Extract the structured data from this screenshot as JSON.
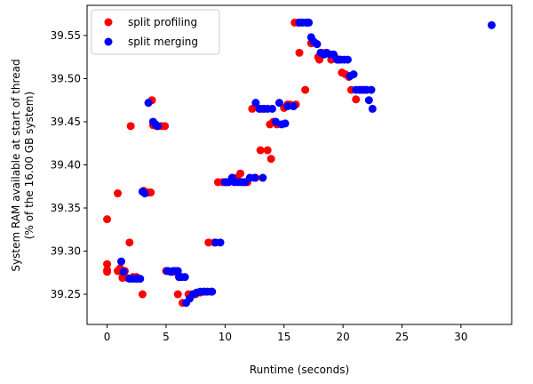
{
  "chart_data": {
    "type": "scatter",
    "title": "",
    "xlabel": "Runtime (seconds)",
    "ylabel_lines": [
      "System RAM available at start of thread",
      "(% of the 16.00 GB system)"
    ],
    "xlim": [
      -1.7,
      34.3
    ],
    "ylim": [
      39.215,
      39.585
    ],
    "xticks": [
      0,
      5,
      10,
      15,
      20,
      25,
      30
    ],
    "yticks": [
      39.25,
      39.3,
      39.35,
      39.4,
      39.45,
      39.5,
      39.55
    ],
    "ytick_labels": [
      "39.25",
      "39.30",
      "39.35",
      "39.40",
      "39.45",
      "39.50",
      "39.55"
    ],
    "grid": false,
    "legend_position": "upper-left",
    "series": [
      {
        "name": "split profiling",
        "color": "#ff0000",
        "points": [
          [
            0.0,
            39.337
          ],
          [
            0.0,
            39.285
          ],
          [
            0.0,
            39.278
          ],
          [
            0.0,
            39.276
          ],
          [
            0.9,
            39.367
          ],
          [
            0.9,
            39.277
          ],
          [
            1.1,
            39.28
          ],
          [
            1.2,
            39.276
          ],
          [
            1.3,
            39.269
          ],
          [
            1.5,
            39.277
          ],
          [
            1.7,
            39.269
          ],
          [
            1.9,
            39.31
          ],
          [
            2.0,
            39.445
          ],
          [
            2.2,
            39.27
          ],
          [
            2.5,
            39.27
          ],
          [
            3.0,
            39.25
          ],
          [
            3.1,
            39.37
          ],
          [
            3.3,
            39.368
          ],
          [
            3.5,
            39.368
          ],
          [
            3.7,
            39.368
          ],
          [
            3.8,
            39.475
          ],
          [
            3.9,
            39.446
          ],
          [
            4.2,
            39.445
          ],
          [
            4.6,
            39.445
          ],
          [
            4.9,
            39.445
          ],
          [
            5.0,
            39.277
          ],
          [
            5.2,
            39.277
          ],
          [
            5.5,
            39.276
          ],
          [
            5.8,
            39.276
          ],
          [
            6.0,
            39.25
          ],
          [
            6.1,
            39.27
          ],
          [
            6.4,
            39.24
          ],
          [
            6.9,
            39.25
          ],
          [
            7.2,
            39.25
          ],
          [
            7.5,
            39.25
          ],
          [
            7.9,
            39.252
          ],
          [
            8.3,
            39.253
          ],
          [
            8.6,
            39.31
          ],
          [
            8.8,
            39.253
          ],
          [
            9.1,
            39.31
          ],
          [
            9.4,
            39.38
          ],
          [
            9.8,
            39.38
          ],
          [
            10.2,
            39.38
          ],
          [
            10.6,
            39.385
          ],
          [
            11.0,
            39.385
          ],
          [
            11.3,
            39.39
          ],
          [
            11.6,
            39.38
          ],
          [
            11.9,
            39.38
          ],
          [
            12.3,
            39.465
          ],
          [
            12.6,
            39.385
          ],
          [
            13.0,
            39.417
          ],
          [
            13.1,
            39.465
          ],
          [
            13.6,
            39.417
          ],
          [
            13.8,
            39.447
          ],
          [
            13.9,
            39.407
          ],
          [
            14.1,
            39.45
          ],
          [
            14.4,
            39.447
          ],
          [
            15.0,
            39.466
          ],
          [
            15.3,
            39.47
          ],
          [
            15.5,
            39.47
          ],
          [
            15.9,
            39.565
          ],
          [
            16.0,
            39.47
          ],
          [
            16.2,
            39.565
          ],
          [
            16.3,
            39.53
          ],
          [
            16.5,
            39.565
          ],
          [
            16.8,
            39.487
          ],
          [
            17.0,
            39.565
          ],
          [
            17.3,
            39.541
          ],
          [
            17.7,
            39.541
          ],
          [
            17.9,
            39.525
          ],
          [
            18.0,
            39.522
          ],
          [
            18.2,
            39.53
          ],
          [
            18.6,
            39.53
          ],
          [
            19.0,
            39.522
          ],
          [
            19.3,
            39.525
          ],
          [
            19.7,
            39.522
          ],
          [
            19.9,
            39.507
          ],
          [
            20.2,
            39.505
          ],
          [
            20.5,
            39.502
          ],
          [
            20.7,
            39.487
          ],
          [
            21.1,
            39.476
          ],
          [
            21.5,
            39.487
          ],
          [
            21.9,
            39.487
          ]
        ]
      },
      {
        "name": "split merging",
        "color": "#0000ff",
        "points": [
          [
            1.2,
            39.288
          ],
          [
            1.4,
            39.276
          ],
          [
            1.9,
            39.268
          ],
          [
            2.2,
            39.268
          ],
          [
            2.5,
            39.268
          ],
          [
            2.8,
            39.268
          ],
          [
            3.0,
            39.369
          ],
          [
            3.2,
            39.367
          ],
          [
            3.5,
            39.472
          ],
          [
            3.9,
            39.45
          ],
          [
            4.1,
            39.447
          ],
          [
            4.3,
            39.445
          ],
          [
            5.1,
            39.277
          ],
          [
            5.4,
            39.276
          ],
          [
            5.6,
            39.277
          ],
          [
            5.8,
            39.277
          ],
          [
            6.0,
            39.277
          ],
          [
            6.1,
            39.27
          ],
          [
            6.3,
            39.27
          ],
          [
            6.6,
            39.27
          ],
          [
            6.7,
            39.24
          ],
          [
            7.0,
            39.245
          ],
          [
            7.3,
            39.25
          ],
          [
            7.6,
            39.252
          ],
          [
            7.9,
            39.253
          ],
          [
            8.2,
            39.253
          ],
          [
            8.5,
            39.253
          ],
          [
            8.9,
            39.253
          ],
          [
            9.2,
            39.31
          ],
          [
            9.6,
            39.31
          ],
          [
            10.0,
            39.38
          ],
          [
            10.3,
            39.38
          ],
          [
            10.6,
            39.385
          ],
          [
            10.8,
            39.38
          ],
          [
            11.1,
            39.38
          ],
          [
            11.4,
            39.38
          ],
          [
            11.7,
            39.38
          ],
          [
            12.1,
            39.385
          ],
          [
            12.5,
            39.385
          ],
          [
            12.6,
            39.472
          ],
          [
            12.9,
            39.465
          ],
          [
            13.2,
            39.385
          ],
          [
            13.3,
            39.465
          ],
          [
            13.6,
            39.465
          ],
          [
            14.0,
            39.465
          ],
          [
            14.3,
            39.45
          ],
          [
            14.6,
            39.472
          ],
          [
            14.8,
            39.447
          ],
          [
            15.1,
            39.448
          ],
          [
            15.3,
            39.468
          ],
          [
            15.8,
            39.468
          ],
          [
            16.3,
            39.565
          ],
          [
            16.6,
            39.565
          ],
          [
            16.9,
            39.565
          ],
          [
            17.1,
            39.565
          ],
          [
            17.3,
            39.548
          ],
          [
            17.5,
            39.543
          ],
          [
            17.8,
            39.54
          ],
          [
            18.1,
            39.53
          ],
          [
            18.4,
            39.528
          ],
          [
            18.6,
            39.53
          ],
          [
            18.9,
            39.528
          ],
          [
            19.2,
            39.528
          ],
          [
            19.5,
            39.522
          ],
          [
            19.8,
            39.522
          ],
          [
            20.1,
            39.522
          ],
          [
            20.4,
            39.522
          ],
          [
            20.6,
            39.503
          ],
          [
            20.9,
            39.505
          ],
          [
            21.1,
            39.487
          ],
          [
            21.4,
            39.487
          ],
          [
            21.7,
            39.487
          ],
          [
            22.0,
            39.487
          ],
          [
            22.2,
            39.475
          ],
          [
            22.4,
            39.487
          ],
          [
            22.5,
            39.465
          ],
          [
            32.6,
            39.562
          ]
        ]
      }
    ]
  }
}
